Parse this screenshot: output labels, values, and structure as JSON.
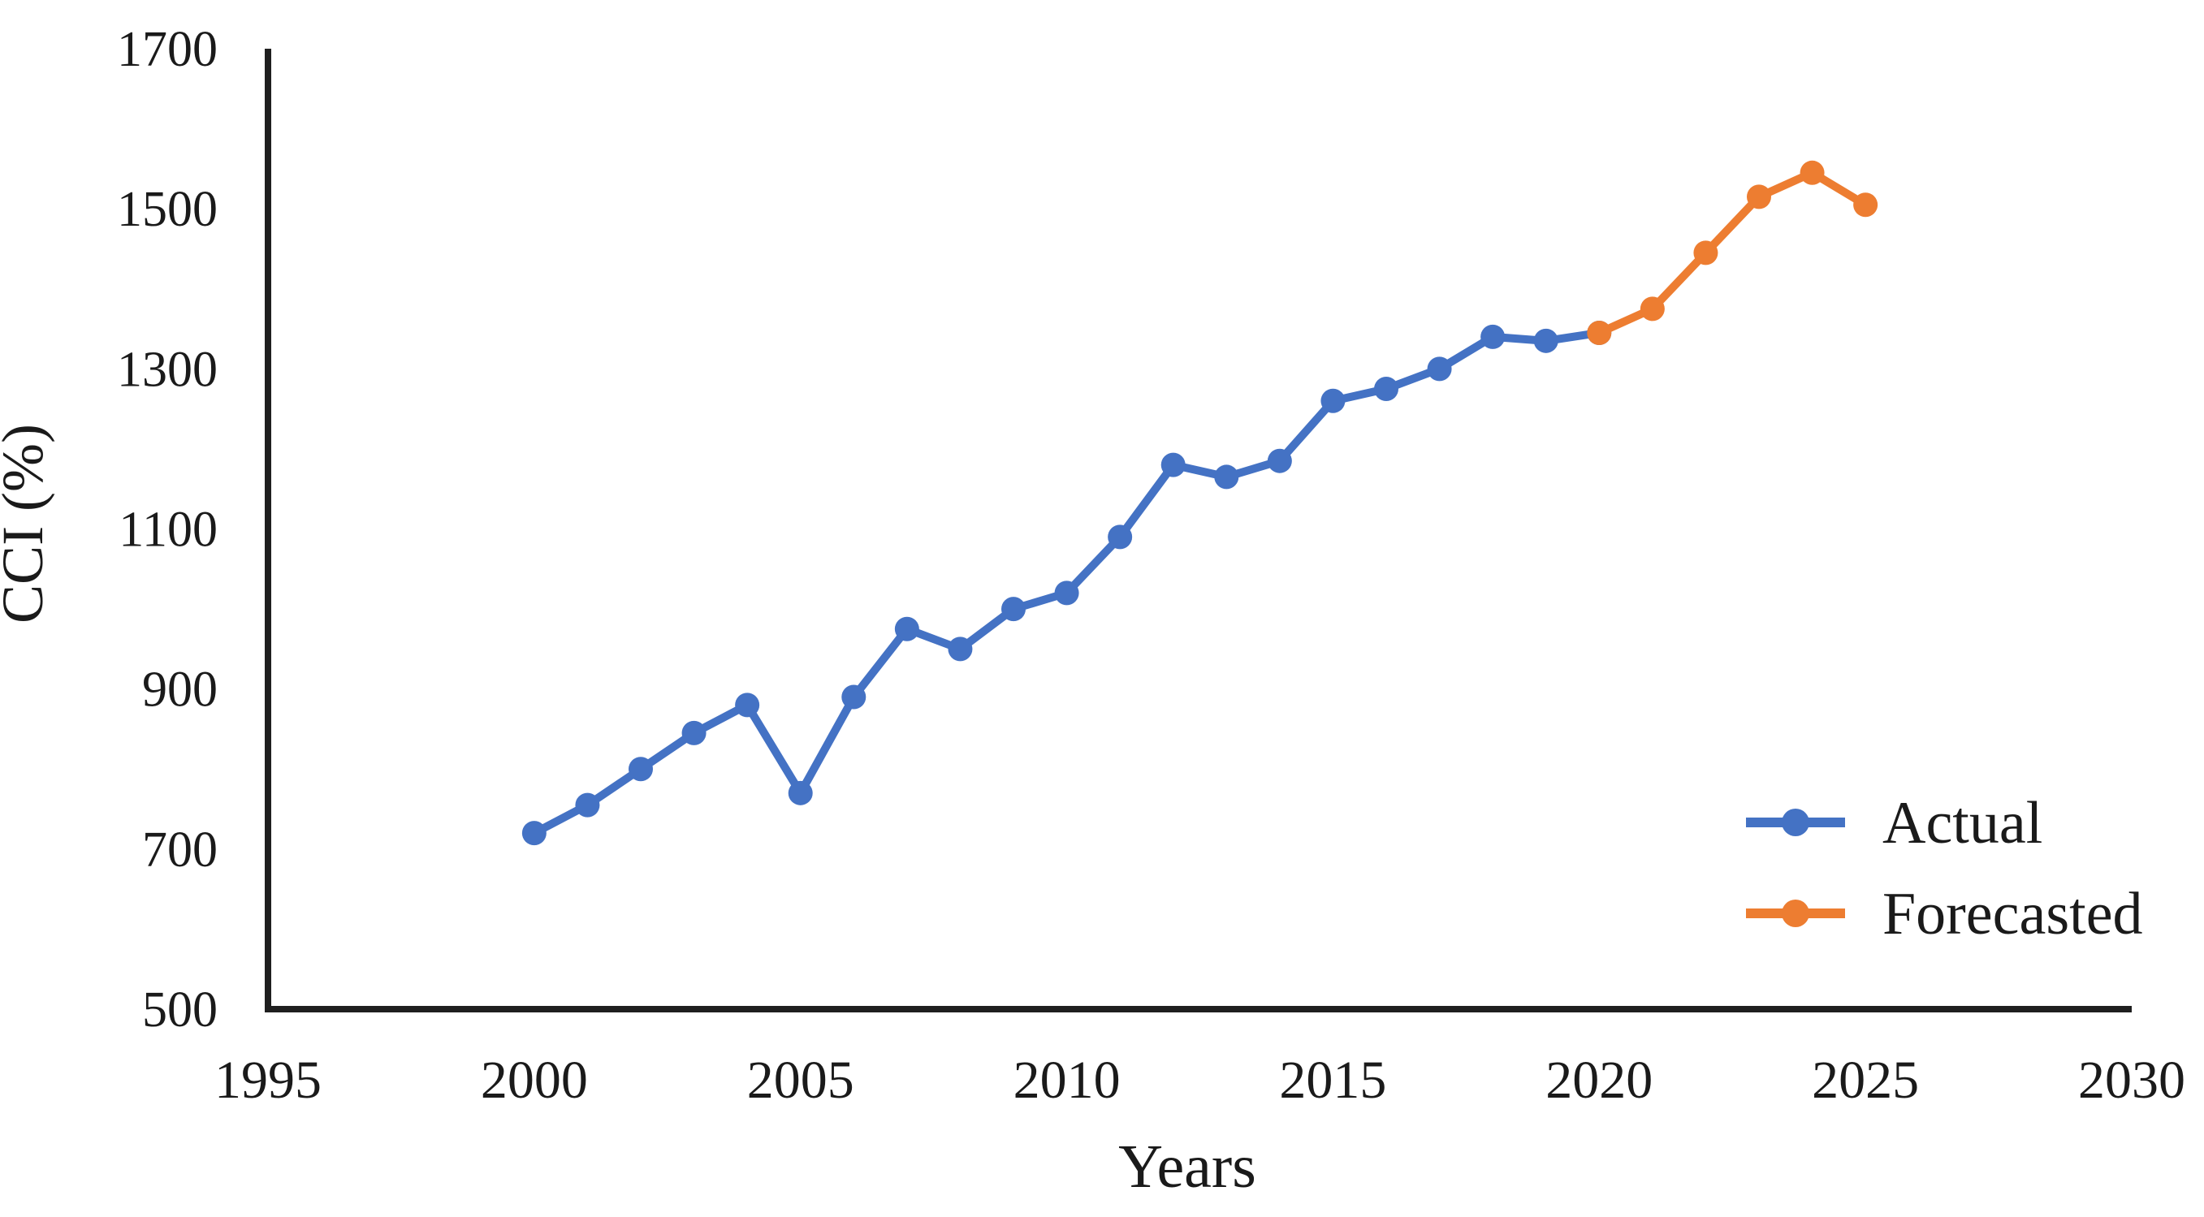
{
  "page": {
    "background": "#ffffff",
    "axis_color": "#1f1f1f",
    "text_color": "#1a1a1a"
  },
  "chart_data": {
    "type": "line",
    "title": "",
    "xlabel": "Years",
    "ylabel": "CCI (%)",
    "xlim": [
      1995,
      2030
    ],
    "ylim": [
      500,
      1700
    ],
    "grid": false,
    "legend_position": "inside-right",
    "x_ticks": [
      "1995",
      "2000",
      "2005",
      "2010",
      "2015",
      "2020",
      "2025",
      "2030"
    ],
    "y_ticks": [
      "500",
      "700",
      "900",
      "1100",
      "1300",
      "1500",
      "1700"
    ],
    "series": [
      {
        "name": "Actual",
        "color": "#4472C4",
        "marker": "circle",
        "x": [
          2000,
          2001,
          2002,
          2003,
          2004,
          2005,
          2006,
          2007,
          2008,
          2009,
          2010,
          2011,
          2012,
          2013,
          2014,
          2015,
          2016,
          2017,
          2018,
          2019,
          2020
        ],
        "values": [
          720,
          755,
          800,
          845,
          880,
          770,
          890,
          975,
          950,
          1000,
          1020,
          1090,
          1180,
          1165,
          1185,
          1260,
          1275,
          1300,
          1340,
          1335,
          1345
        ]
      },
      {
        "name": "Forecasted",
        "color": "#ED7D31",
        "marker": "circle",
        "x": [
          2020,
          2021,
          2022,
          2023,
          2024,
          2025
        ],
        "values": [
          1345,
          1375,
          1445,
          1515,
          1545,
          1505
        ]
      }
    ]
  }
}
